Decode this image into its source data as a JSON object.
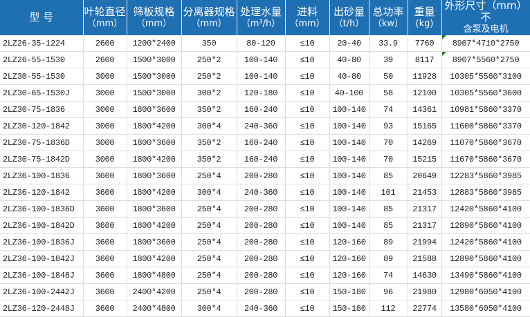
{
  "accent_color": "#1f6fb3",
  "headers": [
    {
      "main": "型  号",
      "sub": ""
    },
    {
      "main": "叶轮直径",
      "sub": "（mm）"
    },
    {
      "main": "筛板规格",
      "sub": "（mm）"
    },
    {
      "main": "分离器规格",
      "sub": "（mm）"
    },
    {
      "main": "处理水量",
      "sub": "（m³/h）"
    },
    {
      "main": "进料",
      "sub": "（mm）"
    },
    {
      "main": "出砂量",
      "sub": "（t/h）"
    },
    {
      "main": "总功率",
      "sub": "（kw）"
    },
    {
      "main": "重量",
      "sub": "(kg)"
    },
    {
      "main": "外形尺寸（mm）不",
      "sub": "含泵及电机"
    }
  ],
  "rows": [
    [
      "2LZ26-35-1224",
      "2600",
      "1200*2400",
      "350",
      "80-120",
      "≤10",
      "20-40",
      "33.9",
      "7760",
      "8907*4710*2750"
    ],
    [
      "2LZ26-55-1530",
      "2600",
      "1500*3000",
      "250*2",
      "100-140",
      "≤10",
      "40-80",
      "39",
      "8117",
      "8907*5560*2750"
    ],
    [
      "2LZ30-55-1530",
      "3000",
      "1500*3000",
      "250*2",
      "100-140",
      "≤10",
      "40-80",
      "50",
      "11928",
      "10305*5560*3100"
    ],
    [
      "2LZ30-65-1530J",
      "3000",
      "1500*3000",
      "300*2",
      "120-180",
      "≤10",
      "40-100",
      "58",
      "12100",
      "10305*5560*3600"
    ],
    [
      "2LZ30-75-1836",
      "3000",
      "1800*3600",
      "350*2",
      "160-240",
      "≤10",
      "100-140",
      "74",
      "14361",
      "10981*5860*3370"
    ],
    [
      "2LZ30-120-1842",
      "3000",
      "1800*4200",
      "300*4",
      "240-360",
      "≤10",
      "100-140",
      "93",
      "15165",
      "11600*5860*3370"
    ],
    [
      "2LZ30-75-1836D",
      "3000",
      "1800*3600",
      "350*2",
      "160-240",
      "≤10",
      "100-140",
      "70",
      "14269",
      "11070*5860*3670"
    ],
    [
      "2LZ30-75-1842D",
      "3000",
      "1800*4200",
      "350*2",
      "160-240",
      "≤10",
      "100-140",
      "70",
      "15215",
      "11670*5860*3670"
    ],
    [
      "2LZ36-100-1836",
      "3600",
      "1800*3600",
      "250*4",
      "200-280",
      "≤10",
      "100-140",
      "85",
      "20649",
      "12283*5860*3985"
    ],
    [
      "2LZ36-120-1842",
      "3600",
      "1800*4200",
      "300*4",
      "240-360",
      "≤10",
      "100-140",
      "101",
      "21453",
      "12883*5860*3985"
    ],
    [
      "2LZ36-100-1836D",
      "3600",
      "1800*3600",
      "250*4",
      "200-280",
      "≤10",
      "100-140",
      "85",
      "21317",
      "12420*5860*4100"
    ],
    [
      "2LZ36-100-1842D",
      "3600",
      "1800*4200",
      "250*4",
      "200-280",
      "≤10",
      "100-140",
      "85",
      "21317",
      "12890*5860*4100"
    ],
    [
      "2LZ36-100-1836J",
      "3600",
      "1800*3600",
      "250*4",
      "200-280",
      "≤10",
      "120-160",
      "89",
      "21994",
      "12420*5860*4100"
    ],
    [
      "2LZ36-100-1842J",
      "3600",
      "1800*4200",
      "250*4",
      "200-280",
      "≤10",
      "120-160",
      "89",
      "21588",
      "12890*5860*4100"
    ],
    [
      "2LZ36-100-1848J",
      "3600",
      "1800*4800",
      "250*4",
      "200-280",
      "≤10",
      "120-160",
      "74",
      "14630",
      "13490*5860*4100"
    ],
    [
      "2LZ36-100-2442J",
      "3600",
      "2400*4200",
      "250*4",
      "200-280",
      "≤10",
      "150-180",
      "96",
      "21980",
      "12980*6050*4100"
    ],
    [
      "2LZ36-120-2448J",
      "3600",
      "2400*4800",
      "300*4",
      "240-360",
      "≤10",
      "150-180",
      "112",
      "22774",
      "13580*6050*4100"
    ]
  ]
}
